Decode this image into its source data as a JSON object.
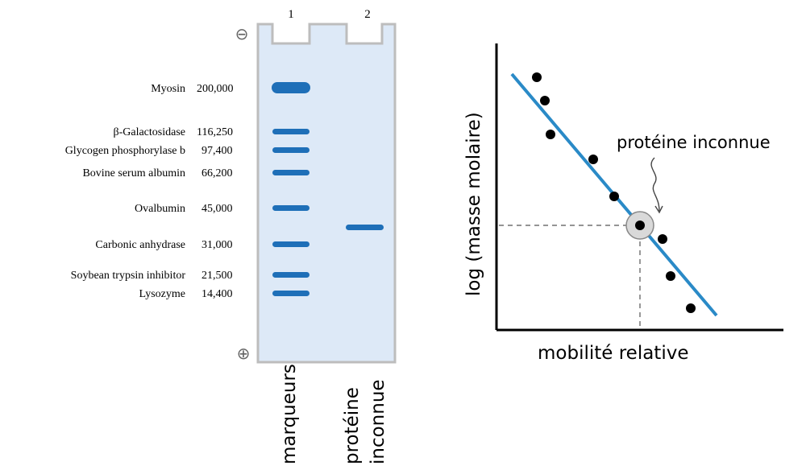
{
  "gel": {
    "lane_numbers": [
      "1",
      "2"
    ],
    "pole_top": "⊖",
    "pole_bottom": "⊕",
    "markers": [
      {
        "protein": "Myosin",
        "mass": "200,000"
      },
      {
        "protein": "β-Galactosidase",
        "mass": "116,250"
      },
      {
        "protein": "Glycogen phosphorylase b",
        "mass": "97,400"
      },
      {
        "protein": "Bovine serum albumin",
        "mass": "66,200"
      },
      {
        "protein": "Ovalbumin",
        "mass": "45,000"
      },
      {
        "protein": "Carbonic anhydrase",
        "mass": "31,000"
      },
      {
        "protein": "Soybean trypsin inhibitor",
        "mass": "21,500"
      },
      {
        "protein": "Lysozyme",
        "mass": "14,400"
      }
    ],
    "lane_labels": {
      "lane1": "marqueurs",
      "lane2_line1": "protéine",
      "lane2_line2": "inconnue"
    },
    "colors": {
      "gel": "#dde9f7",
      "band": "#1e6fb8",
      "frame": "#c8c8c8"
    }
  },
  "plot": {
    "ylabel": "log (masse molaire)",
    "xlabel": "mobilité relative",
    "annotation": "protéine inconnue",
    "colors": {
      "line": "#2a8ac7",
      "point": "#000000"
    }
  }
}
